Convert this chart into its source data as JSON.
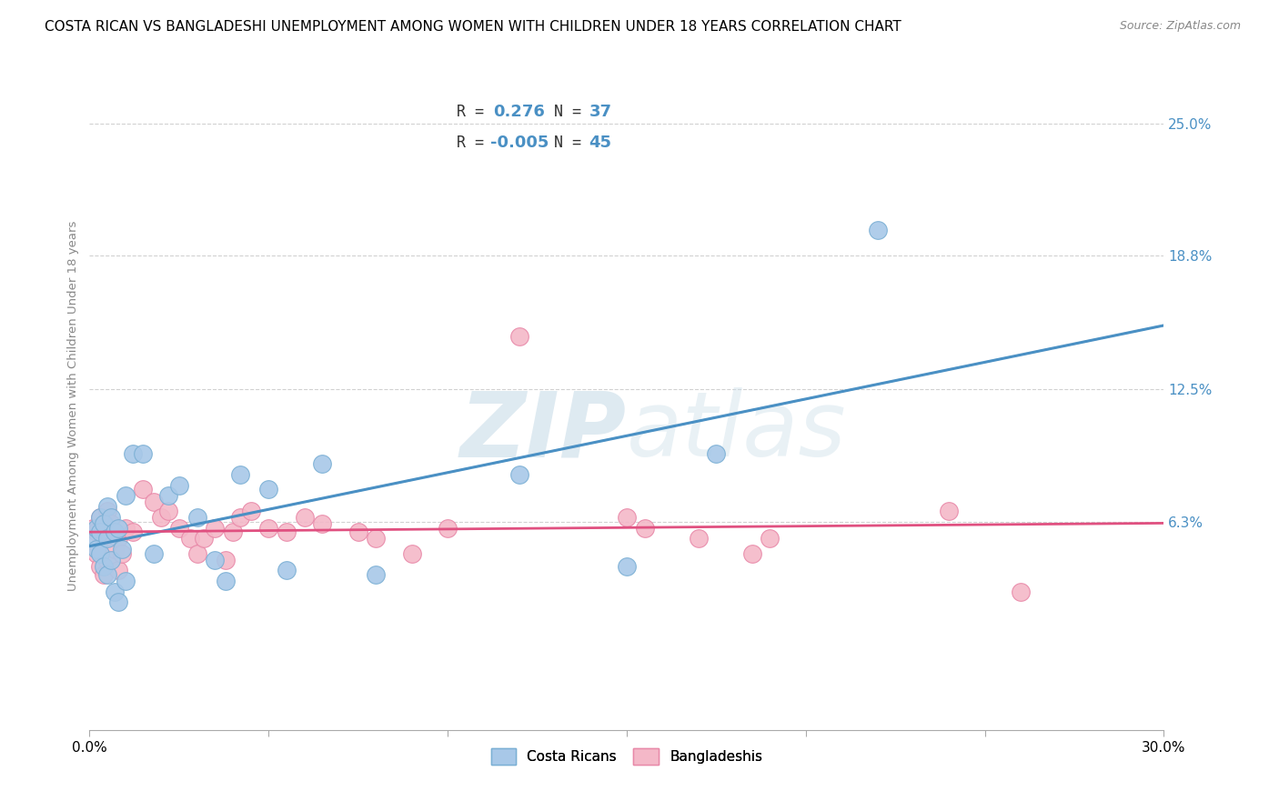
{
  "title": "COSTA RICAN VS BANGLADESHI UNEMPLOYMENT AMONG WOMEN WITH CHILDREN UNDER 18 YEARS CORRELATION CHART",
  "source": "Source: ZipAtlas.com",
  "ylabel": "Unemployment Among Women with Children Under 18 years",
  "xlabel_labels_ends": [
    "0.0%",
    "30.0%"
  ],
  "ytick_vals": [
    0.063,
    0.125,
    0.188,
    0.25
  ],
  "ytick_labels": [
    "6.3%",
    "12.5%",
    "18.8%",
    "25.0%"
  ],
  "xlim": [
    0.0,
    0.3
  ],
  "ylim": [
    -0.035,
    0.27
  ],
  "legend_label1": "Costa Ricans",
  "legend_label2": "Bangladeshis",
  "R1": 0.276,
  "N1": 37,
  "R2": -0.005,
  "N2": 45,
  "color_blue": "#a8c8e8",
  "color_blue_border": "#7aafd4",
  "color_pink": "#f4b8c8",
  "color_pink_border": "#e888a8",
  "color_trend_blue": "#4a90c4",
  "color_trend_pink": "#e05080",
  "watermark_color": "#d8e8f0",
  "title_fontsize": 11,
  "source_fontsize": 9,
  "costa_rican_x": [
    0.001,
    0.002,
    0.002,
    0.003,
    0.003,
    0.003,
    0.004,
    0.004,
    0.005,
    0.005,
    0.005,
    0.006,
    0.006,
    0.007,
    0.007,
    0.008,
    0.008,
    0.009,
    0.01,
    0.01,
    0.012,
    0.015,
    0.018,
    0.022,
    0.025,
    0.03,
    0.035,
    0.038,
    0.042,
    0.05,
    0.055,
    0.065,
    0.08,
    0.12,
    0.15,
    0.175,
    0.22
  ],
  "costa_rican_y": [
    0.055,
    0.06,
    0.05,
    0.065,
    0.058,
    0.048,
    0.062,
    0.042,
    0.07,
    0.055,
    0.038,
    0.065,
    0.045,
    0.058,
    0.03,
    0.06,
    0.025,
    0.05,
    0.075,
    0.035,
    0.095,
    0.095,
    0.048,
    0.075,
    0.08,
    0.065,
    0.045,
    0.035,
    0.085,
    0.078,
    0.04,
    0.09,
    0.038,
    0.085,
    0.042,
    0.095,
    0.2
  ],
  "bangladeshi_x": [
    0.001,
    0.002,
    0.002,
    0.003,
    0.003,
    0.004,
    0.004,
    0.005,
    0.005,
    0.006,
    0.007,
    0.008,
    0.008,
    0.009,
    0.01,
    0.012,
    0.015,
    0.018,
    0.02,
    0.022,
    0.025,
    0.028,
    0.03,
    0.032,
    0.035,
    0.038,
    0.04,
    0.042,
    0.045,
    0.05,
    0.055,
    0.06,
    0.065,
    0.075,
    0.08,
    0.09,
    0.1,
    0.12,
    0.15,
    0.155,
    0.17,
    0.185,
    0.19,
    0.24,
    0.26
  ],
  "bangladeshi_y": [
    0.06,
    0.058,
    0.048,
    0.065,
    0.042,
    0.055,
    0.038,
    0.068,
    0.045,
    0.062,
    0.05,
    0.055,
    0.04,
    0.048,
    0.06,
    0.058,
    0.078,
    0.072,
    0.065,
    0.068,
    0.06,
    0.055,
    0.048,
    0.055,
    0.06,
    0.045,
    0.058,
    0.065,
    0.068,
    0.06,
    0.058,
    0.065,
    0.062,
    0.058,
    0.055,
    0.048,
    0.06,
    0.15,
    0.065,
    0.06,
    0.055,
    0.048,
    0.055,
    0.068,
    0.03
  ]
}
